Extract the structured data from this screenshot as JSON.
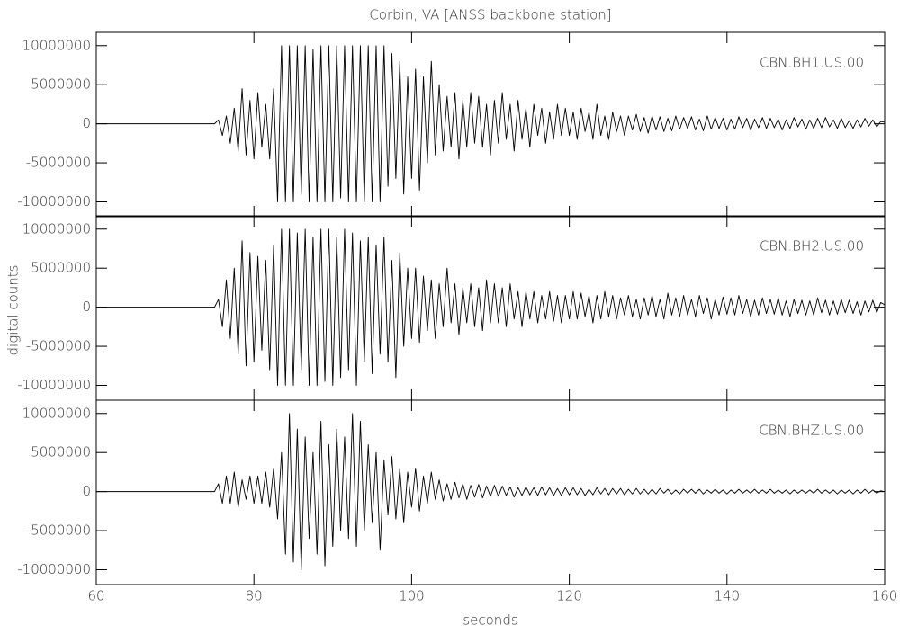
{
  "chart_data": {
    "type": "line",
    "title": "Corbin, VA [ANSS backbone station]",
    "x_label": "seconds",
    "y_label": "digital counts",
    "color": "#000000",
    "xlim": [
      60,
      160
    ],
    "xticks": [
      60,
      80,
      100,
      120,
      140,
      160
    ],
    "ylim": [
      -11900000,
      11700000
    ],
    "yticks": [
      -10000000,
      -5000000,
      0,
      5000000,
      10000000
    ],
    "x": [
      60,
      75,
      75.5,
      76,
      76.5,
      77,
      77.5,
      78,
      78.5,
      79,
      79.5,
      80,
      80.5,
      81,
      81.5,
      82,
      82.5,
      83,
      83.5,
      84,
      84.5,
      85,
      85.5,
      86,
      86.5,
      87,
      87.5,
      88,
      88.5,
      89,
      89.5,
      90,
      90.5,
      91,
      91.5,
      92,
      92.5,
      93,
      93.5,
      94,
      94.5,
      95,
      95.5,
      96,
      96.5,
      97,
      97.5,
      98,
      98.5,
      99,
      99.5,
      100,
      100.5,
      101,
      101.5,
      102,
      102.5,
      103,
      103.5,
      104,
      104.5,
      105,
      105.5,
      106,
      106.5,
      107,
      107.5,
      108,
      108.5,
      109,
      109.5,
      110,
      110.5,
      111,
      111.5,
      112,
      112.5,
      113,
      113.5,
      114,
      114.5,
      115,
      115.5,
      116,
      116.5,
      117,
      117.5,
      118,
      118.5,
      119,
      119.5,
      120,
      120.5,
      121,
      121.5,
      122,
      122.5,
      123,
      123.5,
      124,
      124.5,
      125,
      125.5,
      126,
      126.5,
      127,
      127.5,
      128,
      128.5,
      129,
      129.5,
      130,
      130.5,
      131,
      131.5,
      132,
      132.5,
      133,
      133.5,
      134,
      134.5,
      135,
      135.5,
      136,
      136.5,
      137,
      137.5,
      138,
      138.5,
      139,
      139.5,
      140,
      140.5,
      141,
      141.5,
      142,
      142.5,
      143,
      143.5,
      144,
      144.5,
      145,
      145.5,
      146,
      146.5,
      147,
      147.5,
      148,
      148.5,
      149,
      149.5,
      150,
      150.5,
      151,
      151.5,
      152,
      152.5,
      153,
      153.5,
      154,
      154.5,
      155,
      155.5,
      156,
      156.5,
      157,
      157.5,
      158,
      158.5,
      159,
      159.5,
      160
    ],
    "series": [
      {
        "name": "CBN.BH1.US.00",
        "values": [
          0,
          0,
          500000,
          -1500000,
          1000000,
          -2500000,
          2000000,
          -3500000,
          4500000,
          -4000000,
          3000000,
          -4500000,
          4000000,
          -3000000,
          2500000,
          -4500000,
          4500000,
          -10000000,
          10000000,
          -10000000,
          10000000,
          -10000000,
          10000000,
          -9000000,
          10000000,
          -10000000,
          9500000,
          -10000000,
          10000000,
          -10000000,
          10000000,
          -10000000,
          10000000,
          -9500000,
          10000000,
          -10000000,
          10000000,
          -10000000,
          10000000,
          -10000000,
          10000000,
          -10000000,
          10000000,
          -10000000,
          10000000,
          -8000000,
          9000000,
          -7000000,
          8000000,
          -9000000,
          6000000,
          -7000000,
          7000000,
          -8500000,
          6000000,
          -5000000,
          8000000,
          -4000000,
          5000000,
          -3500000,
          3500000,
          -3000000,
          4000000,
          -4500000,
          3000000,
          -3000000,
          4000000,
          -2500000,
          3500000,
          -3000000,
          2500000,
          -4000000,
          3000000,
          -2500000,
          4000000,
          -2000000,
          2500000,
          -3500000,
          3000000,
          -2000000,
          2000000,
          -3000000,
          2500000,
          -1500000,
          2000000,
          -2500000,
          1500000,
          -2000000,
          2500000,
          -1500000,
          2000000,
          -1500000,
          1500000,
          -2000000,
          2000000,
          -1000000,
          1500000,
          -2000000,
          2500000,
          -1500000,
          1000000,
          -2000000,
          1500000,
          -1000000,
          1000000,
          -1500000,
          1000000,
          -800000,
          1200000,
          -1000000,
          800000,
          -1200000,
          1000000,
          -800000,
          900000,
          -1000000,
          700000,
          -900000,
          1000000,
          -700000,
          800000,
          -600000,
          900000,
          -800000,
          600000,
          -900000,
          1000000,
          -700000,
          800000,
          -600000,
          700000,
          -800000,
          600000,
          -700000,
          900000,
          -500000,
          700000,
          -800000,
          600000,
          -500000,
          800000,
          -600000,
          700000,
          -500000,
          600000,
          -800000,
          500000,
          -600000,
          800000,
          -400000,
          600000,
          -700000,
          500000,
          -600000,
          700000,
          -500000,
          800000,
          -400000,
          500000,
          -600000,
          700000,
          -500000,
          400000,
          -600000,
          500000,
          -400000,
          700000,
          -300000,
          500000,
          -400000,
          300000,
          200000
        ]
      },
      {
        "name": "CBN.BH2.US.00",
        "values": [
          0,
          0,
          1000000,
          -2500000,
          3500000,
          -4000000,
          5000000,
          -6000000,
          8500000,
          -7500000,
          7000000,
          -7000000,
          6500000,
          -5500000,
          6000000,
          -8000000,
          8000000,
          -10000000,
          10000000,
          -10000000,
          10000000,
          -10000000,
          9500000,
          -8000000,
          10000000,
          -10000000,
          9000000,
          -10000000,
          10000000,
          -9500000,
          10000000,
          -10000000,
          9000000,
          -9000000,
          10000000,
          -8000000,
          9500000,
          -10000000,
          8500000,
          -7000000,
          9000000,
          -8500000,
          8000000,
          -6000000,
          9000000,
          -7000000,
          6000000,
          -9000000,
          7000000,
          -5000000,
          5000000,
          -4000000,
          5000000,
          -4500000,
          4000000,
          -3000000,
          3500000,
          -4000000,
          3000000,
          -2500000,
          5000000,
          -2000000,
          3000000,
          -3500000,
          2500000,
          -2000000,
          3000000,
          -2500000,
          2500000,
          -3000000,
          3500000,
          -2000000,
          3000000,
          -2000000,
          2500000,
          -2500000,
          3000000,
          -1500000,
          2000000,
          -2500000,
          2000000,
          -1500000,
          2000000,
          -2000000,
          1500000,
          -1500000,
          2000000,
          -1800000,
          1500000,
          -2000000,
          1500000,
          -1500000,
          2000000,
          -1500000,
          1800000,
          -1200000,
          1500000,
          -2000000,
          1500000,
          -1500000,
          2000000,
          -1200000,
          1500000,
          -1500000,
          1200000,
          -1000000,
          1500000,
          -1200000,
          1000000,
          -1500000,
          1200000,
          -1000000,
          1500000,
          -1200000,
          1000000,
          -1500000,
          1800000,
          -1000000,
          1200000,
          -1200000,
          1500000,
          -1000000,
          1000000,
          -1200000,
          1500000,
          -800000,
          1200000,
          -1500000,
          1000000,
          -1000000,
          1300000,
          -900000,
          1200000,
          -1000000,
          1500000,
          -800000,
          1000000,
          -1200000,
          900000,
          -1000000,
          1200000,
          -800000,
          1000000,
          -900000,
          1200000,
          -1000000,
          800000,
          -1200000,
          1000000,
          -800000,
          900000,
          -1000000,
          800000,
          -1000000,
          1200000,
          -700000,
          900000,
          -1000000,
          800000,
          -900000,
          1000000,
          -700000,
          900000,
          -800000,
          700000,
          -1000000,
          800000,
          -600000,
          900000,
          -700000,
          600000,
          300000
        ]
      },
      {
        "name": "CBN.BHZ.US.00",
        "values": [
          0,
          0,
          1000000,
          -1500000,
          2000000,
          -1500000,
          2500000,
          -2000000,
          1500000,
          -1000000,
          2000000,
          -1500000,
          2000000,
          -1500000,
          2500000,
          -2000000,
          3000000,
          -3500000,
          5000000,
          -8000000,
          10000000,
          -9000000,
          8000000,
          -10000000,
          7000000,
          -6000000,
          5000000,
          -8000000,
          9000000,
          -9500000,
          6000000,
          -7000000,
          8000000,
          -5000000,
          7000000,
          -6000000,
          10000000,
          -7000000,
          9000000,
          -5000000,
          6000000,
          -4000000,
          5000000,
          -7500000,
          4000000,
          -3000000,
          4500000,
          -3500000,
          3000000,
          -4000000,
          2500000,
          -2000000,
          3000000,
          -2500000,
          2000000,
          -1500000,
          2500000,
          -1000000,
          1500000,
          -1200000,
          1000000,
          -1000000,
          1200000,
          -800000,
          1000000,
          -1000000,
          800000,
          -700000,
          900000,
          -800000,
          700000,
          -600000,
          800000,
          -600000,
          700000,
          -500000,
          600000,
          -700000,
          500000,
          -500000,
          600000,
          -400000,
          500000,
          -500000,
          600000,
          -400000,
          500000,
          -500000,
          400000,
          -500000,
          500000,
          -400000,
          500000,
          -400000,
          400000,
          -500000,
          300000,
          -400000,
          500000,
          -300000,
          400000,
          -400000,
          400000,
          -300000,
          400000,
          -400000,
          300000,
          -300000,
          400000,
          -300000,
          300000,
          -300000,
          300000,
          -300000,
          400000,
          -200000,
          300000,
          -300000,
          200000,
          -300000,
          300000,
          -200000,
          300000,
          -200000,
          300000,
          -300000,
          200000,
          -200000,
          300000,
          -200000,
          200000,
          -300000,
          200000,
          -200000,
          300000,
          -200000,
          200000,
          -200000,
          300000,
          -200000,
          200000,
          -200000,
          300000,
          -200000,
          200000,
          -200000,
          200000,
          -300000,
          200000,
          -200000,
          200000,
          -200000,
          200000,
          -200000,
          300000,
          -200000,
          200000,
          -200000,
          200000,
          -300000,
          200000,
          -200000,
          200000,
          -300000,
          200000,
          -200000,
          300000,
          -200000,
          200000,
          -200000,
          100000,
          0
        ]
      }
    ]
  }
}
